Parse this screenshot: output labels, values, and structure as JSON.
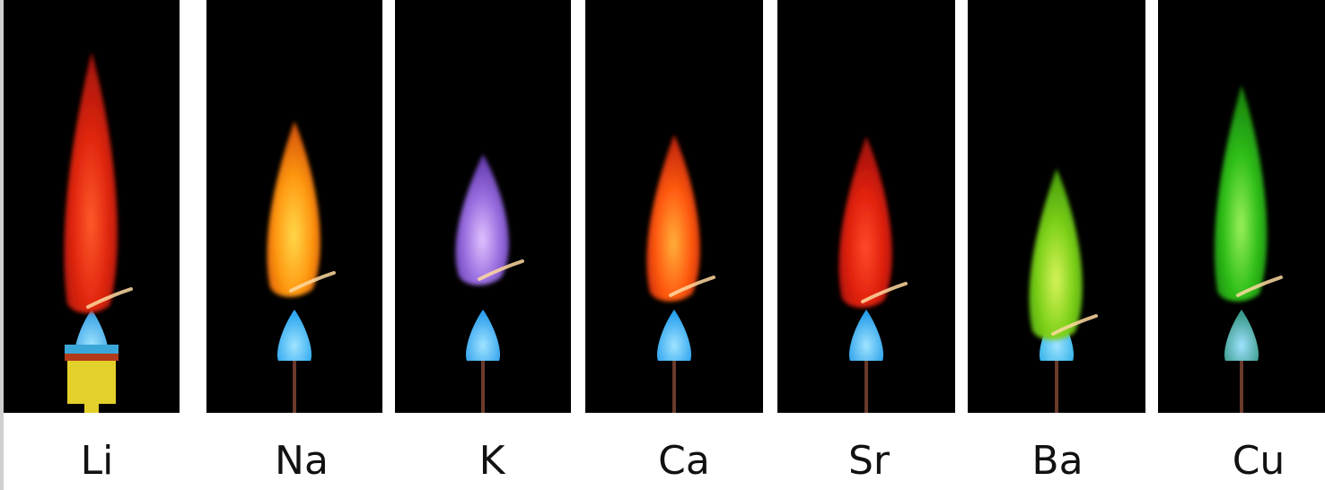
{
  "samples": [
    {
      "symbol": "Li",
      "flame": "#e0260f",
      "core": "#ff5a2a",
      "tip": "#c81a0a",
      "cone": "#3fa6e6"
    },
    {
      "symbol": "Na",
      "flame": "#ff9a12",
      "core": "#ffd84a",
      "tip": "#ff6a0a",
      "cone": "#2fa8f0"
    },
    {
      "symbol": "K",
      "flame": "#9a6fe0",
      "core": "#e2c2ff",
      "tip": "#7a4ad0",
      "cone": "#2fa0ee"
    },
    {
      "symbol": "Ca",
      "flame": "#ff5a10",
      "core": "#ffb03a",
      "tip": "#e8300a",
      "cone": "#2aa2ee"
    },
    {
      "symbol": "Sr",
      "flame": "#e0200c",
      "core": "#ff4a2a",
      "tip": "#c0140a",
      "cone": "#2aa0ea"
    },
    {
      "symbol": "Ba",
      "flame": "#7fd21a",
      "core": "#d7f25a",
      "tip": "#5ac010",
      "cone": "#2fb0e8"
    },
    {
      "symbol": "Cu",
      "flame": "#2fbf1a",
      "core": "#9bf05a",
      "tip": "#1fa010",
      "cone": "#3a9a8a"
    }
  ]
}
